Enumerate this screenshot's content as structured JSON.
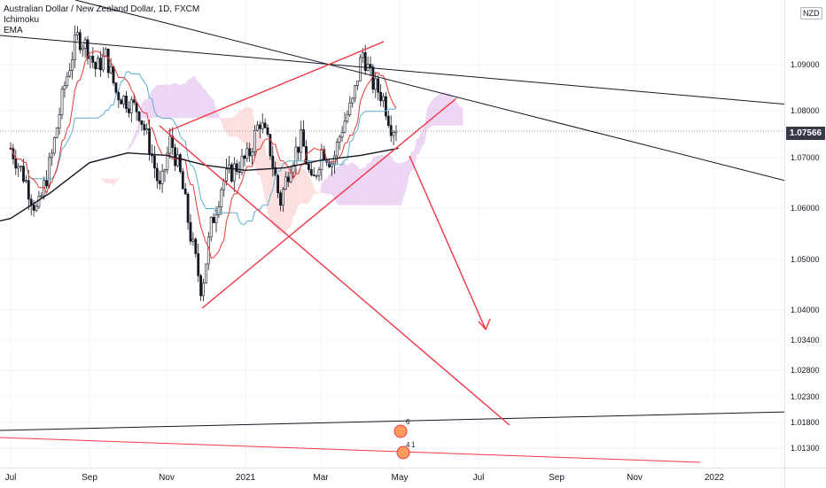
{
  "legend": {
    "symbol": "Australian Dollar / New Zealand Dollar, 1D, FXCM",
    "indicator_1": "Ichimoku",
    "indicator_2": "EMA"
  },
  "price_axis": {
    "currency": "NZD",
    "last_price": "1.07566",
    "tick_labels": [
      "1.09000",
      "1.08000",
      "1.07000",
      "1.06000",
      "1.05000",
      "1.04000",
      "1.03400",
      "1.02800",
      "1.02300",
      "1.01800",
      "1.01300"
    ]
  },
  "time_axis": {
    "labels": [
      "Jul",
      "Sep",
      "Nov",
      "2021",
      "Mar",
      "May",
      "Jul",
      "Sep",
      "Nov",
      "2022"
    ]
  },
  "event_badges": [
    "4",
    "1",
    "6"
  ],
  "colors": {
    "bull_candle": "#ffffff",
    "bear_candle": "#131722",
    "conversion_line": "#e53935",
    "base_line": "#5ab0d0",
    "cloud_bull": "#e6c8f0",
    "cloud_bear": "#fbd4d4",
    "ema": "#131722",
    "drawing_red": "#f23645",
    "drawing_black": "#131722"
  },
  "chart_data": {
    "type": "candlestick",
    "title": "Australian Dollar / New Zealand Dollar, 1D, FXCM",
    "ylim": [
      1.0128,
      1.0995
    ],
    "y_ticks": [
      1.09,
      1.08,
      1.07,
      1.06,
      1.05,
      1.04,
      1.034,
      1.028,
      1.023,
      1.018,
      1.013
    ],
    "x_ticks": [
      "Jul",
      "Sep",
      "Nov",
      "2021",
      "Mar",
      "May",
      "Jul",
      "Sep",
      "Nov",
      "2022"
    ],
    "grid": true,
    "last_value": 1.07566,
    "price_path": [
      [
        "2020-07-01",
        1.072
      ],
      [
        "2020-07-12",
        1.066
      ],
      [
        "2020-07-22",
        1.059
      ],
      [
        "2020-08-02",
        1.07
      ],
      [
        "2020-08-12",
        1.085
      ],
      [
        "2020-08-22",
        1.096
      ],
      [
        "2020-08-30",
        1.094
      ],
      [
        "2020-09-06",
        1.089
      ],
      [
        "2020-09-14",
        1.092
      ],
      [
        "2020-09-22",
        1.084
      ],
      [
        "2020-10-01",
        1.082
      ],
      [
        "2020-10-10",
        1.08
      ],
      [
        "2020-10-19",
        1.072
      ],
      [
        "2020-10-27",
        1.063
      ],
      [
        "2020-11-04",
        1.074
      ],
      [
        "2020-11-12",
        1.066
      ],
      [
        "2020-11-20",
        1.054
      ],
      [
        "2020-11-28",
        1.044
      ],
      [
        "2020-12-05",
        1.056
      ],
      [
        "2020-12-14",
        1.065
      ],
      [
        "2020-12-24",
        1.068
      ],
      [
        "2021-01-03",
        1.07
      ],
      [
        "2021-01-12",
        1.078
      ],
      [
        "2021-01-20",
        1.072
      ],
      [
        "2021-01-28",
        1.061
      ],
      [
        "2021-02-05",
        1.069
      ],
      [
        "2021-02-14",
        1.074
      ],
      [
        "2021-02-22",
        1.064
      ],
      [
        "2021-03-02",
        1.072
      ],
      [
        "2021-03-10",
        1.069
      ],
      [
        "2021-03-18",
        1.077
      ],
      [
        "2021-03-26",
        1.082
      ],
      [
        "2021-04-02",
        1.093
      ],
      [
        "2021-04-10",
        1.086
      ],
      [
        "2021-04-18",
        1.083
      ],
      [
        "2021-04-24",
        1.077
      ],
      [
        "2021-04-30",
        1.0757
      ]
    ],
    "ema_path": [
      [
        "2020-07-01",
        1.058
      ],
      [
        "2020-08-01",
        1.063
      ],
      [
        "2020-09-01",
        1.069
      ],
      [
        "2020-10-01",
        1.071
      ],
      [
        "2020-11-01",
        1.0705
      ],
      [
        "2020-12-01",
        1.0685
      ],
      [
        "2021-01-01",
        1.0675
      ],
      [
        "2021-02-01",
        1.068
      ],
      [
        "2021-03-01",
        1.0695
      ],
      [
        "2021-04-01",
        1.0705
      ],
      [
        "2021-04-30",
        1.072
      ]
    ]
  }
}
